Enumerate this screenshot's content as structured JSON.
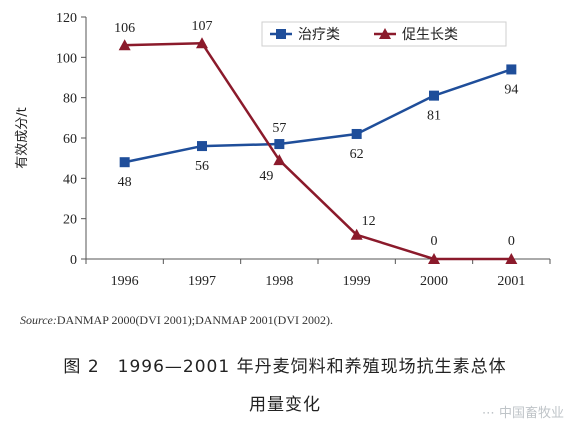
{
  "chart_data": {
    "type": "line",
    "x": [
      "1996",
      "1997",
      "1998",
      "1999",
      "2000",
      "2001"
    ],
    "ylabel": "有效成分/t",
    "ylim": [
      0,
      120
    ],
    "yticks": [
      0,
      20,
      40,
      60,
      80,
      100,
      120
    ],
    "grid": false,
    "legend_position": "top-right",
    "series": [
      {
        "name": "治疗类",
        "values": [
          48,
          56,
          57,
          62,
          81,
          94
        ],
        "color": "#1f4e9a",
        "marker": "square"
      },
      {
        "name": "促生长类",
        "values": [
          106,
          107,
          49,
          12,
          0,
          0
        ],
        "color": "#8b1a2b",
        "marker": "triangle"
      }
    ]
  },
  "source": {
    "label": "Source:",
    "text": "DANMAP 2000(DVI 2001);DANMAP 2001(DVI 2002)."
  },
  "caption": {
    "line1": "图 2　1996—2001 年丹麦饲料和养殖现场抗生素总体",
    "line2": "用量变化"
  },
  "watermark": "⋯ 中国畜牧业"
}
